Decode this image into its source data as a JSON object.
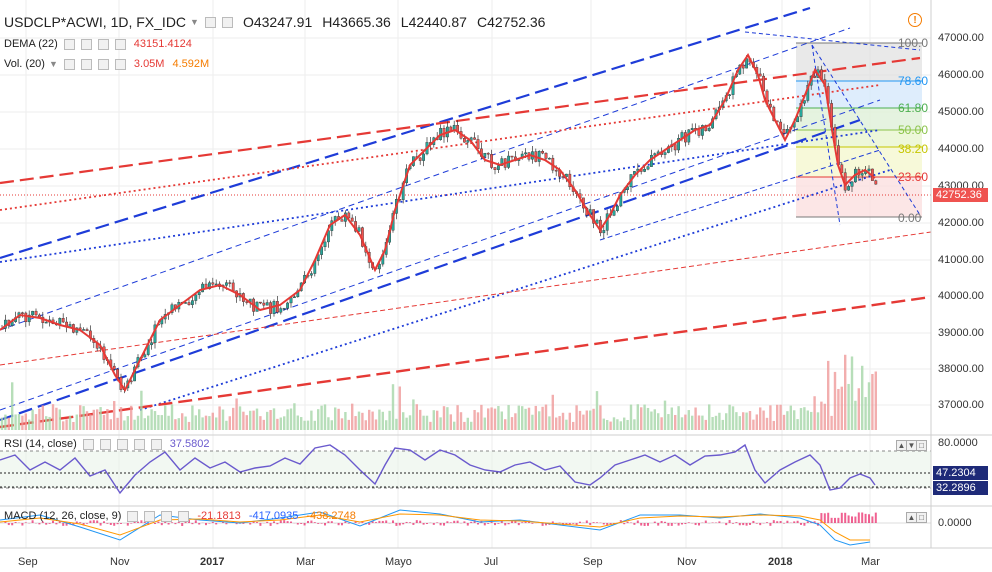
{
  "header": {
    "symbol": "USDCLP*ACWI, 1D, FX_IDC",
    "open": "O43247.91",
    "high": "H43665.36",
    "low": "L42440.87",
    "close": "C42752.36"
  },
  "indicators": {
    "dema_label": "DEMA (22)",
    "dema_value": "43151.4124",
    "vol_label": "Vol. (20)",
    "vol_value1": "3.05M",
    "vol_value2": "4.592M",
    "rsi_label": "RSI (14, close)",
    "rsi_value": "37.5802",
    "macd_label": "MACD (12, 26, close, 9)",
    "macd_v1": "-21.1813",
    "macd_v2": "-417.0935",
    "macd_v3": "-438.2748"
  },
  "price_axis": [
    "47000.00",
    "46000.00",
    "45000.00",
    "44000.00",
    "43000.00",
    "42000.00",
    "41000.00",
    "40000.00",
    "39000.00",
    "38000.00",
    "37000.00"
  ],
  "price_tag": "42752.36",
  "fib_levels": [
    {
      "label": "100.0",
      "color": "#787878"
    },
    {
      "label": "78.60",
      "color": "#2196f3"
    },
    {
      "label": "61.80",
      "color": "#4caf50"
    },
    {
      "label": "50.00",
      "color": "#8bc34a"
    },
    {
      "label": "38.20",
      "color": "#c6c600"
    },
    {
      "label": "23.60",
      "color": "#e53935"
    },
    {
      "label": "0.00",
      "color": "#787878"
    }
  ],
  "rsi_axis": {
    "top": "80.0000",
    "tag1": "47.2304",
    "tag2": "32.2896"
  },
  "macd_axis": {
    "zero": "0.0000"
  },
  "x_axis": [
    {
      "label": "Sep",
      "bold": false
    },
    {
      "label": "Nov",
      "bold": false
    },
    {
      "label": "2017",
      "bold": true
    },
    {
      "label": "Mar",
      "bold": false
    },
    {
      "label": "Mayo",
      "bold": false
    },
    {
      "label": "Jul",
      "bold": false
    },
    {
      "label": "Sep",
      "bold": false
    },
    {
      "label": "Nov",
      "bold": false
    },
    {
      "label": "2018",
      "bold": true
    },
    {
      "label": "Mar",
      "bold": false
    }
  ],
  "colors": {
    "up": "#26a69a",
    "down": "#ef5350",
    "dema": "#e53935",
    "rsi": "#7e57c2",
    "trend_blue": "#1e3cd8",
    "trend_red": "#e53935"
  },
  "icons": [
    "gear-icon",
    "eye-icon",
    "close-icon",
    "alert-icon"
  ]
}
